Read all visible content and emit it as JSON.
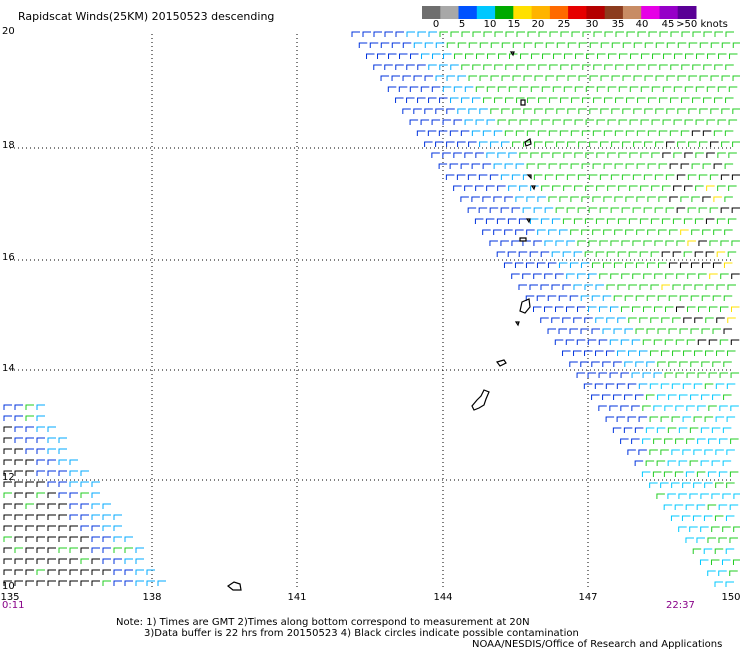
{
  "title": "Rapidscat Winds(25KM) 20150523 descending",
  "colorbar": {
    "labels": [
      "0",
      "5",
      "10",
      "15",
      "20",
      "25",
      "30",
      "35",
      "40",
      "45",
      ">50 knots"
    ],
    "colors": [
      "#6e6e6e",
      "#a8a8a8",
      "#0052ff",
      "#00c8ff",
      "#00aa00",
      "#ffe000",
      "#ffb400",
      "#ff6a00",
      "#e60000",
      "#b40000",
      "#8c3c1e",
      "#c88c64",
      "#e600e6",
      "#9600c8",
      "#5a0096"
    ]
  },
  "map": {
    "lat_labels": [
      "20",
      "18",
      "16",
      "14",
      "12",
      "10"
    ],
    "lon_labels": [
      "135",
      "138",
      "141",
      "144",
      "147",
      "150"
    ],
    "lat_range": [
      10,
      20
    ],
    "lon_range": [
      135,
      150
    ],
    "grid": "dotted"
  },
  "times": {
    "start": "0:11",
    "end": "22:37"
  },
  "note": {
    "line1": "Note: 1) Times are GMT 2)Times along bottom correspond to measurement at 20N",
    "line2": "3)Data buffer is 22 hrs from 20150523 4) Black circles indicate possible contamination"
  },
  "credit": "NOAA/NESDIS/Office of Research and Applications"
}
